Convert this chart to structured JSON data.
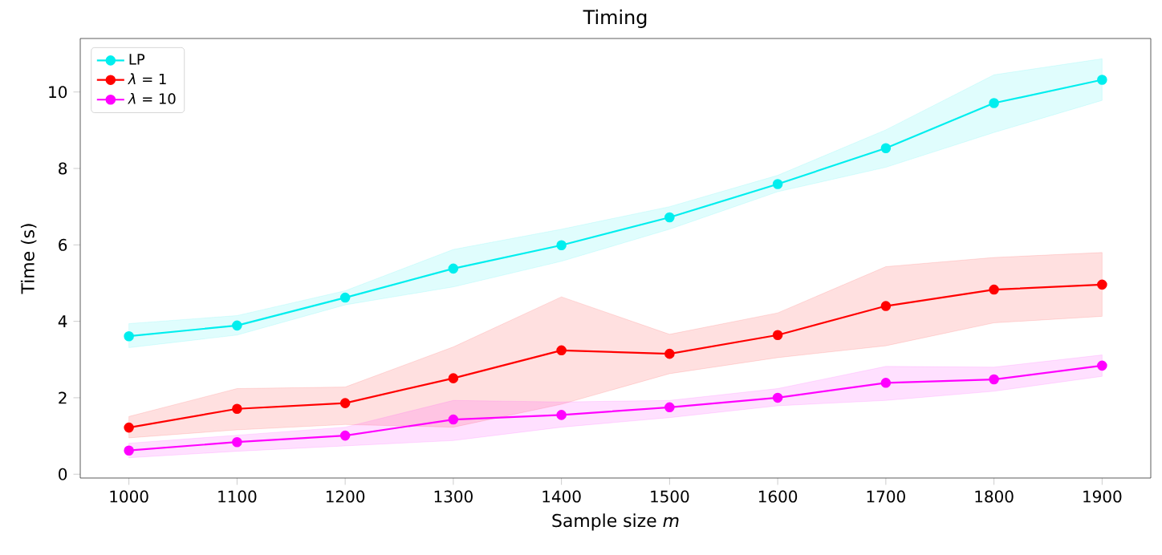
{
  "chart_data": {
    "type": "line",
    "title": "Timing",
    "xlabel": "Sample size *m*",
    "ylabel": "Time (s)",
    "x": [
      1000,
      1100,
      1200,
      1300,
      1400,
      1500,
      1600,
      1700,
      1800,
      1900
    ],
    "xlim": [
      955,
      1945
    ],
    "xticks": [
      1000,
      1100,
      1200,
      1300,
      1400,
      1500,
      1600,
      1700,
      1800,
      1900
    ],
    "ylim": [
      -0.1,
      11.4
    ],
    "yticks": [
      0,
      2,
      4,
      6,
      8,
      10
    ],
    "grid": false,
    "legend": "top left",
    "marker": "circle",
    "line_style": "solid",
    "series": [
      {
        "name": "LP",
        "color": "#00eeee",
        "values": [
          3.61,
          3.89,
          4.62,
          5.38,
          5.99,
          6.72,
          7.59,
          8.53,
          9.71,
          10.32
        ],
        "lower": [
          3.31,
          3.64,
          4.43,
          4.9,
          5.57,
          6.41,
          7.39,
          8.03,
          8.94,
          9.78
        ],
        "upper": [
          3.94,
          4.15,
          4.8,
          5.88,
          6.41,
          7.0,
          7.82,
          9.01,
          10.45,
          10.87
        ]
      },
      {
        "name": "*λ* = 1",
        "color": "#ff0000",
        "values": [
          1.22,
          1.71,
          1.86,
          2.51,
          3.24,
          3.15,
          3.64,
          4.4,
          4.83,
          4.96
        ],
        "lower": [
          0.95,
          1.16,
          1.3,
          1.23,
          1.83,
          2.63,
          3.05,
          3.36,
          3.96,
          4.13
        ],
        "upper": [
          1.51,
          2.24,
          2.28,
          3.33,
          4.64,
          3.66,
          4.22,
          5.43,
          5.67,
          5.8
        ]
      },
      {
        "name": "*λ* = 10",
        "color": "#ff00ff",
        "values": [
          0.62,
          0.84,
          1.01,
          1.43,
          1.55,
          1.75,
          2.0,
          2.39,
          2.48,
          2.84
        ],
        "lower": [
          0.43,
          0.6,
          0.74,
          0.88,
          1.23,
          1.48,
          1.79,
          1.93,
          2.17,
          2.56
        ],
        "upper": [
          0.81,
          1.02,
          1.23,
          1.93,
          1.89,
          1.93,
          2.24,
          2.82,
          2.8,
          3.12
        ]
      }
    ]
  }
}
